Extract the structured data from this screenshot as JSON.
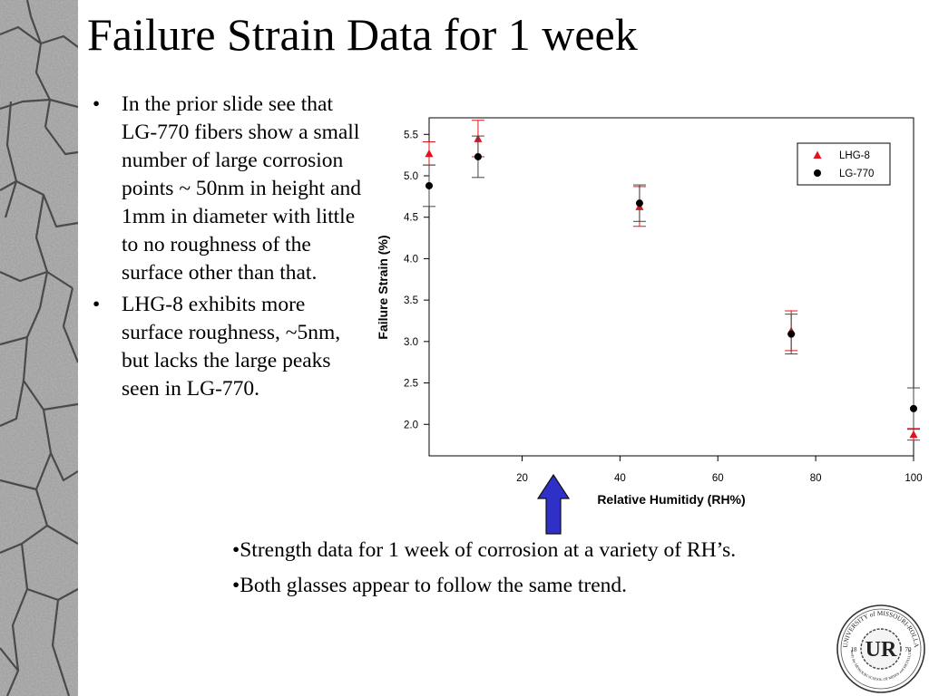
{
  "slide": {
    "title": "Failure Strain Data for 1 week",
    "bullets": [
      "In the prior slide see that LG-770 fibers show a small number of large corrosion points ~ 50nm in height and 1mm in diameter with little to no roughness of the surface other than that.",
      "LHG-8 exhibits more surface roughness, ~5nm, but lacks the large peaks seen in LG-770."
    ],
    "notes": [
      "•Strength data for 1 week of corrosion at a variety of RH’s.",
      "•Both glasses appear to follow the same trend."
    ],
    "arrow_color": "#2e30c8",
    "logo": {
      "name": "university-seal-icon",
      "ring_text": "UNIVERSITY of MISSOURI-ROLLA",
      "monogram": "UR",
      "year_left": "18",
      "year_right": "70",
      "lower_text": "Formerly the MISSOURI SCHOOL OF MINES and METALLURGY"
    }
  },
  "chart_data": {
    "type": "scatter",
    "xlabel": "Relative Humitidy (RH%)",
    "ylabel": "Failure Strain (%)",
    "xlim": [
      1,
      100
    ],
    "ylim": [
      1.62,
      5.7
    ],
    "xticks": [
      20,
      40,
      60,
      80,
      100
    ],
    "yticks": [
      2.0,
      2.5,
      3.0,
      3.5,
      4.0,
      4.5,
      5.0,
      5.5
    ],
    "ytick_labels": [
      "2.0",
      "2.5",
      "3.0",
      "3.5",
      "4.0",
      "4.5",
      "5.0",
      "5.5"
    ],
    "grid": false,
    "legend_position": "top-right",
    "series": [
      {
        "name": "LHG-8",
        "marker": "triangle",
        "color": "#e0141e",
        "points": [
          {
            "x": 1,
            "y": 5.27,
            "err": 0.14
          },
          {
            "x": 11,
            "y": 5.45,
            "err": 0.22
          },
          {
            "x": 44,
            "y": 4.63,
            "err": 0.24
          },
          {
            "x": 75,
            "y": 3.13,
            "err": 0.24
          },
          {
            "x": 100,
            "y": 1.88,
            "err": 0.07
          }
        ]
      },
      {
        "name": "LG-770",
        "marker": "circle",
        "color": "#000000",
        "points": [
          {
            "x": 1,
            "y": 4.88,
            "err": 0.25
          },
          {
            "x": 11,
            "y": 5.23,
            "err": 0.25
          },
          {
            "x": 44,
            "y": 4.67,
            "err": 0.22
          },
          {
            "x": 75,
            "y": 3.09,
            "err": 0.24
          },
          {
            "x": 100,
            "y": 2.19,
            "err": 0.25
          }
        ]
      }
    ]
  }
}
